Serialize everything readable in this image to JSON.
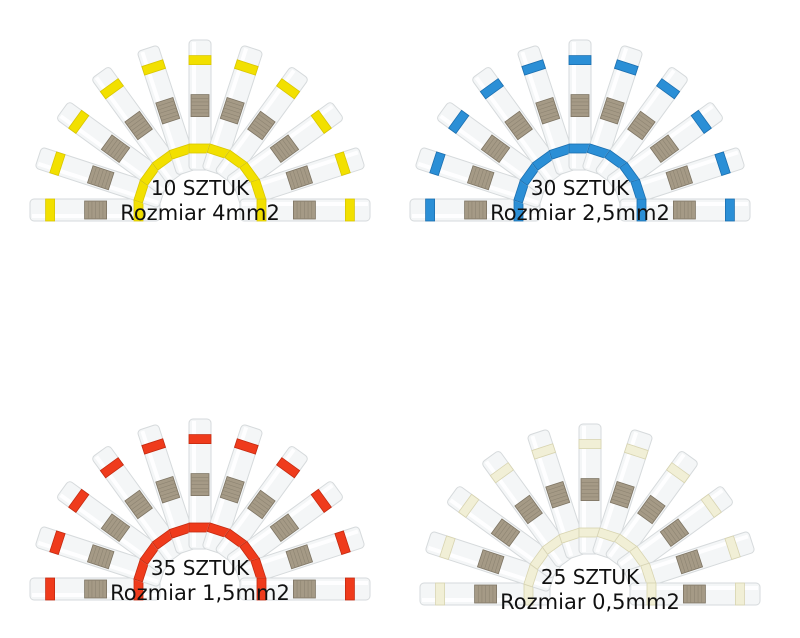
{
  "panels": [
    {
      "count": "10 SZTUK",
      "size": "Rozmiar 4mm2",
      "band_color": "#f2e000",
      "band_edge": "#d9c600"
    },
    {
      "count": "30 SZTUK",
      "size": "Rozmiar 2,5mm2",
      "band_color": "#2b8fd6",
      "band_edge": "#1b6fb0"
    },
    {
      "count": "35 SZTUK",
      "size": "Rozmiar 1,5mm2",
      "band_color": "#ef3b1c",
      "band_edge": "#c42a10"
    },
    {
      "count": "25 SZTUK",
      "size": "Rozmiar 0,5mm2",
      "band_color": "#f1efd6",
      "band_edge": "#d8d4b0"
    }
  ]
}
